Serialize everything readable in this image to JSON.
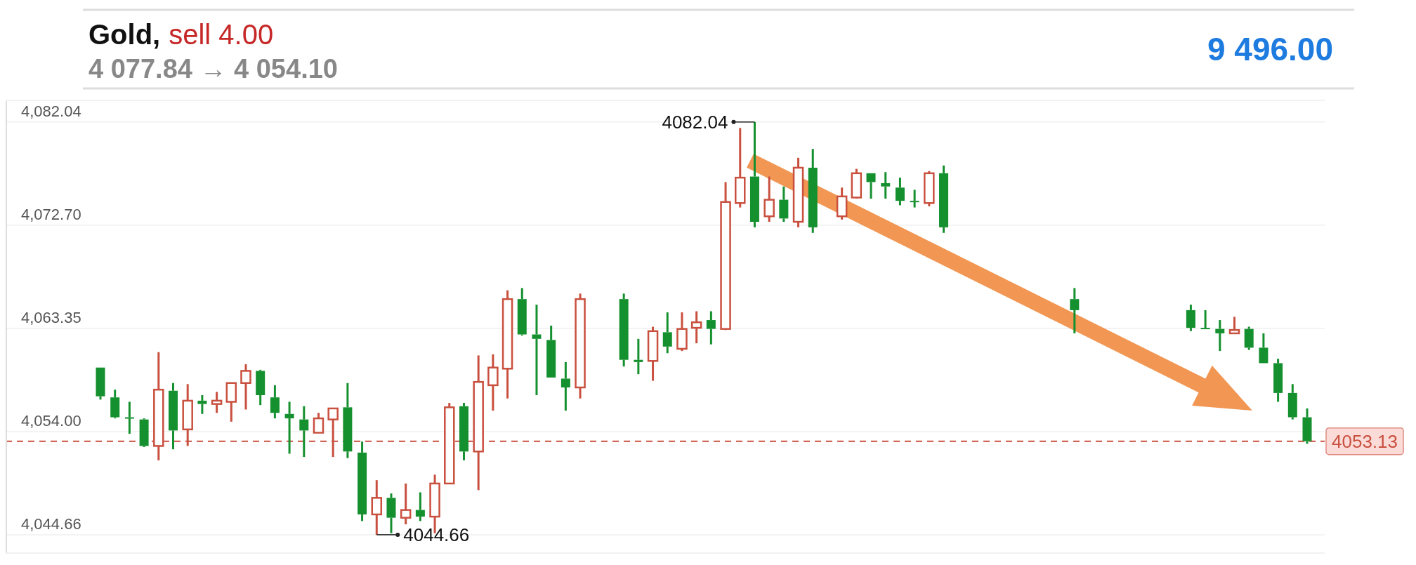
{
  "chart_data": {
    "type": "candlestick",
    "categories": [
      null,
      null,
      null,
      null,
      null,
      null,
      null,
      null,
      null,
      null,
      null,
      null,
      null,
      null,
      null,
      null,
      null,
      null,
      null,
      null,
      null,
      null,
      null,
      null,
      null,
      null,
      null,
      null,
      null,
      null,
      null,
      null,
      null,
      null,
      null,
      null,
      null,
      null,
      null,
      null,
      null,
      null,
      null,
      null,
      null,
      null,
      null,
      null,
      null,
      null,
      null,
      null,
      null,
      null,
      null,
      null,
      null,
      null,
      null,
      null,
      null,
      null,
      null,
      null,
      null,
      null,
      null,
      null,
      null,
      null,
      null,
      null,
      null,
      null,
      null,
      null,
      null,
      null,
      null,
      null,
      null,
      null,
      null,
      null
    ],
    "ohlc": [
      [
        4059.8,
        4059.8,
        4056.9,
        4057.2
      ],
      [
        4057.1,
        4057.8,
        4055.2,
        4055.3
      ],
      [
        4055.3,
        4056.7,
        4053.8,
        4055.2
      ],
      [
        4055.1,
        4055.2,
        4052.6,
        4052.7
      ],
      [
        4052.7,
        4061.2,
        4051.4,
        4057.8
      ],
      [
        4057.7,
        4058.4,
        4052.4,
        4054.1
      ],
      [
        4054.2,
        4058.3,
        4052.7,
        4056.8
      ],
      [
        4056.8,
        4057.3,
        4055.6,
        4056.5
      ],
      [
        4056.5,
        4057.6,
        4055.7,
        4056.8
      ],
      [
        4056.7,
        4058.4,
        4054.9,
        4058.4
      ],
      [
        4058.4,
        4060.1,
        4056.0,
        4059.5
      ],
      [
        4059.5,
        4059.6,
        4056.4,
        4057.3
      ],
      [
        4057.1,
        4058.2,
        4055.2,
        4055.7
      ],
      [
        4055.6,
        4056.7,
        4052.0,
        4055.2
      ],
      [
        4055.1,
        4056.3,
        4051.7,
        4054.1
      ],
      [
        4053.9,
        4055.7,
        4053.9,
        4055.2
      ],
      [
        4055.1,
        4056.1,
        4051.7,
        4056.1
      ],
      [
        4056.2,
        4058.4,
        4051.6,
        4052.2
      ],
      [
        4052.1,
        4053.1,
        4045.9,
        4046.5
      ],
      [
        4046.5,
        4049.6,
        4044.66,
        4048.0
      ],
      [
        4048.0,
        4048.4,
        4044.8,
        4046.2
      ],
      [
        4046.2,
        4049.3,
        4045.6,
        4046.9
      ],
      [
        4046.9,
        4048.5,
        4045.9,
        4046.3
      ],
      [
        4046.3,
        4050.1,
        4044.8,
        4049.3
      ],
      [
        4049.3,
        4056.6,
        4049.3,
        4056.2
      ],
      [
        4056.3,
        4056.6,
        4051.4,
        4052.2
      ],
      [
        4052.2,
        4060.9,
        4048.7,
        4058.5
      ],
      [
        4058.2,
        4061.0,
        4055.9,
        4059.8
      ],
      [
        4059.7,
        4066.8,
        4057.0,
        4066.0
      ],
      [
        4066.0,
        4067.0,
        4062.7,
        4062.8
      ],
      [
        4062.8,
        4065.5,
        4057.3,
        4062.4
      ],
      [
        4062.3,
        4063.6,
        4058.9,
        4058.9
      ],
      [
        4058.8,
        4060.3,
        4055.9,
        4058.0
      ],
      [
        4058.0,
        4066.5,
        4057.0,
        4066.0
      ],
      null,
      null,
      [
        4066.0,
        4066.5,
        4059.9,
        4060.5
      ],
      [
        4060.5,
        4062.4,
        4059.2,
        4060.3
      ],
      [
        4060.4,
        4063.5,
        4058.6,
        4063.1
      ],
      [
        4063.0,
        4064.8,
        4061.1,
        4061.7
      ],
      [
        4061.5,
        4064.8,
        4061.3,
        4063.3
      ],
      [
        4063.4,
        4064.9,
        4062.0,
        4063.9
      ],
      [
        4064.1,
        4064.9,
        4061.9,
        4063.3
      ],
      [
        4063.3,
        4076.6,
        4063.2,
        4074.8
      ],
      [
        4074.7,
        4081.5,
        4074.3,
        4077.0
      ],
      [
        4077.1,
        4082.04,
        4072.5,
        4073.0
      ],
      [
        4073.5,
        4077.1,
        4073.0,
        4075.0
      ],
      [
        4075.0,
        4076.2,
        4073.0,
        4073.3
      ],
      [
        4073.0,
        4078.8,
        4072.5,
        4077.9
      ],
      [
        4077.9,
        4079.6,
        4072.0,
        4072.5
      ],
      null,
      [
        4073.5,
        4076.1,
        4073.2,
        4075.3
      ],
      [
        4075.2,
        4077.8,
        4075.1,
        4077.4
      ],
      [
        4077.4,
        4077.4,
        4075.1,
        4076.6
      ],
      [
        4076.5,
        4077.5,
        4075.1,
        4076.2
      ],
      [
        4076.1,
        4077.0,
        4074.5,
        4074.9
      ],
      [
        4074.9,
        4075.9,
        4074.3,
        4074.8
      ],
      [
        4074.7,
        4077.6,
        4074.4,
        4077.4
      ],
      [
        4077.4,
        4078.1,
        4072.0,
        4072.5
      ],
      null,
      null,
      null,
      null,
      null,
      null,
      null,
      null,
      [
        4066.0,
        4067.0,
        4062.9,
        4065.0
      ],
      null,
      null,
      null,
      null,
      null,
      null,
      null,
      [
        4065.0,
        4065.5,
        4063.1,
        4063.4
      ],
      [
        4063.4,
        4065.0,
        4063.3,
        4063.3
      ],
      [
        4063.3,
        4064.1,
        4061.3,
        4062.9
      ],
      [
        4062.9,
        4064.4,
        4062.9,
        4063.2
      ],
      [
        4063.3,
        4063.5,
        4061.4,
        4061.6
      ],
      [
        4061.6,
        4062.9,
        4060.2,
        4060.2
      ],
      [
        4060.2,
        4060.6,
        4056.7,
        4057.5
      ],
      [
        4057.5,
        4058.3,
        4055.1,
        4055.3
      ],
      [
        4055.3,
        4056.1,
        4052.9,
        4053.13
      ]
    ],
    "colors": [
      "#15902f",
      "#15902f",
      "#15902f",
      "#15902f",
      "#c9503f",
      "#15902f",
      "#c9503f",
      "#15902f",
      "#c9503f",
      "#c9503f",
      "#c9503f",
      "#15902f",
      "#15902f",
      "#15902f",
      "#15902f",
      "#c9503f",
      "#c9503f",
      "#15902f",
      "#15902f",
      "#c9503f",
      "#15902f",
      "#c9503f",
      "#15902f",
      "#c9503f",
      "#c9503f",
      "#15902f",
      "#c9503f",
      "#c9503f",
      "#c9503f",
      "#15902f",
      "#15902f",
      "#15902f",
      "#15902f",
      "#c9503f",
      null,
      null,
      "#15902f",
      "#15902f",
      "#c9503f",
      "#15902f",
      "#c9503f",
      "#c9503f",
      "#15902f",
      "#c9503f",
      "#c9503f",
      "#15902f",
      "#c9503f",
      "#15902f",
      "#c9503f",
      "#15902f",
      null,
      "#c9503f",
      "#c9503f",
      "#15902f",
      "#15902f",
      "#15902f",
      "#15902f",
      "#c9503f",
      "#15902f",
      null,
      null,
      null,
      null,
      null,
      null,
      null,
      null,
      "#15902f",
      null,
      null,
      null,
      null,
      null,
      null,
      null,
      "#15902f",
      "#15902f",
      "#15902f",
      "#c9503f",
      "#15902f",
      "#15902f",
      "#15902f",
      "#15902f",
      "#15902f"
    ],
    "ylim": [
      4043,
      4084
    ],
    "yticks": [
      {
        "value": 4044.66,
        "label": "4,044.66"
      },
      {
        "value": 4054.0,
        "label": "4,054.00"
      },
      {
        "value": 4063.35,
        "label": "4,063.35"
      },
      {
        "value": 4072.7,
        "label": "4,072.70"
      },
      {
        "value": 4082.04,
        "label": "4,082.04"
      }
    ],
    "tick_labels": "y",
    "grid": "y",
    "ref_lines": [
      {
        "axis": "y",
        "value": 4053.13,
        "label": "4053.13",
        "color": "#c9503f",
        "line_style": "dashed"
      }
    ],
    "annotations": [
      "Gold,",
      "sell 4.00",
      "4 077.84 → 4 054.10",
      "9 496.00",
      "4082.04",
      "4044.66"
    ]
  }
}
